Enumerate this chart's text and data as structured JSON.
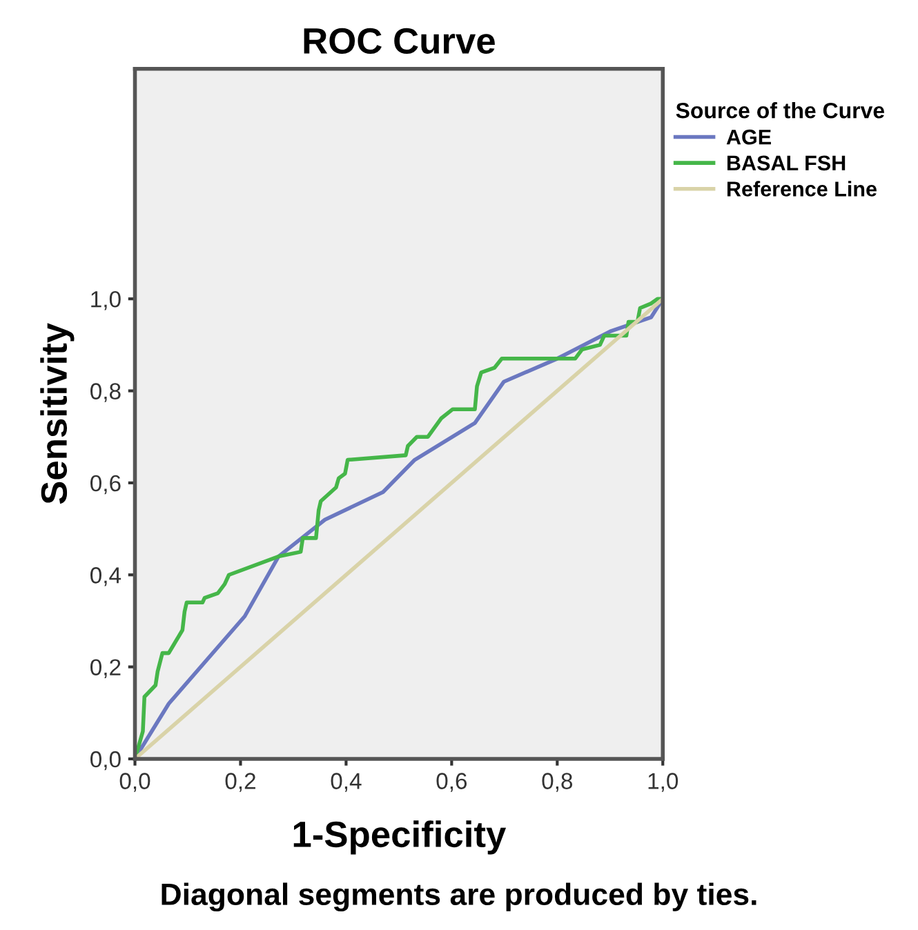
{
  "chart_data": {
    "type": "line",
    "title": "ROC Curve",
    "xlabel": "1-Specificity",
    "ylabel": "Sensitivity",
    "legend_title": "Source of the Curve",
    "legend": "right",
    "grid": false,
    "marker": "none",
    "line_style": "solid",
    "xlim": [
      0,
      1
    ],
    "ylim": [
      0,
      1.5
    ],
    "xticks": [
      {
        "value": 0,
        "label": "0,0"
      },
      {
        "value": 0.2,
        "label": "0,2"
      },
      {
        "value": 0.4,
        "label": "0,4"
      },
      {
        "value": 0.6,
        "label": "0,6"
      },
      {
        "value": 0.8,
        "label": "0,8"
      },
      {
        "value": 1,
        "label": "1,0"
      }
    ],
    "yticks": [
      {
        "value": 0,
        "label": "0,0"
      },
      {
        "value": 0.2,
        "label": "0,2"
      },
      {
        "value": 0.4,
        "label": "0,4"
      },
      {
        "value": 0.6,
        "label": "0,6"
      },
      {
        "value": 0.8,
        "label": "0,8"
      },
      {
        "value": 1,
        "label": "1,0"
      }
    ],
    "annotations": [
      "Diagonal segments are produced by ties."
    ],
    "series": [
      {
        "name": "AGE",
        "color": "#6b78c0",
        "x": [
          0,
          0.005,
          0.064,
          0.208,
          0.272,
          0.36,
          0.47,
          0.53,
          0.644,
          0.699,
          0.8,
          0.902,
          0.978,
          1
        ],
        "values": [
          0,
          0.01,
          0.12,
          0.31,
          0.44,
          0.52,
          0.58,
          0.65,
          0.73,
          0.82,
          0.87,
          0.93,
          0.96,
          1
        ]
      },
      {
        "name": "BASAL FSH",
        "color": "#45b649",
        "x": [
          0,
          0.015,
          0.018,
          0.039,
          0.043,
          0.052,
          0.064,
          0.09,
          0.094,
          0.098,
          0.128,
          0.132,
          0.157,
          0.17,
          0.178,
          0.272,
          0.314,
          0.318,
          0.343,
          0.348,
          0.352,
          0.381,
          0.386,
          0.398,
          0.403,
          0.513,
          0.517,
          0.534,
          0.555,
          0.58,
          0.602,
          0.644,
          0.648,
          0.656,
          0.681,
          0.695,
          0.834,
          0.847,
          0.881,
          0.889,
          0.931,
          0.935,
          0.952,
          0.957,
          0.978,
          0.99,
          1
        ],
        "values": [
          0,
          0.06,
          0.135,
          0.16,
          0.19,
          0.23,
          0.23,
          0.28,
          0.32,
          0.34,
          0.34,
          0.35,
          0.36,
          0.38,
          0.4,
          0.44,
          0.45,
          0.48,
          0.48,
          0.54,
          0.56,
          0.59,
          0.61,
          0.62,
          0.65,
          0.66,
          0.68,
          0.7,
          0.7,
          0.74,
          0.76,
          0.76,
          0.81,
          0.84,
          0.85,
          0.87,
          0.87,
          0.89,
          0.9,
          0.92,
          0.92,
          0.95,
          0.95,
          0.98,
          0.99,
          1,
          1
        ]
      },
      {
        "name": "Reference Line",
        "color": "#d9d3a8",
        "x": [
          0,
          1
        ],
        "values": [
          0,
          1
        ]
      }
    ]
  }
}
